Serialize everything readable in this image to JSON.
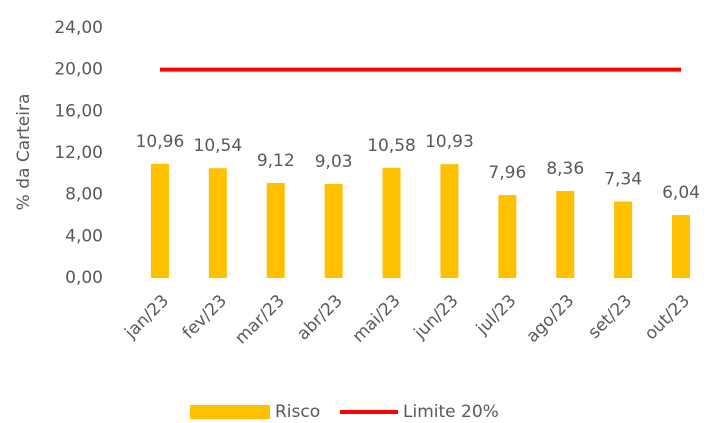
{
  "chart_data": {
    "type": "bar",
    "y_axis_label": "% da Carteira",
    "categories": [
      "jan/23",
      "fev/23",
      "mar/23",
      "abr/23",
      "mai/23",
      "jun/23",
      "jul/23",
      "ago/23",
      "set/23",
      "out/23"
    ],
    "series": [
      {
        "name": "Risco",
        "type": "bar",
        "color": "#ffc000",
        "values": [
          10.96,
          10.54,
          9.12,
          9.03,
          10.58,
          10.93,
          7.96,
          8.36,
          7.34,
          6.04
        ],
        "value_labels": [
          "10,96",
          "10,54",
          "9,12",
          "9,03",
          "10,58",
          "10,93",
          "7,96",
          "8,36",
          "7,34",
          "6,04"
        ]
      },
      {
        "name": "Limite 20%",
        "type": "line",
        "color": "#ff0000",
        "values": [
          20,
          20,
          20,
          20,
          20,
          20,
          20,
          20,
          20,
          20
        ]
      }
    ],
    "ylim": [
      0,
      24
    ],
    "yticks": [
      {
        "value": 0,
        "label": "0,00"
      },
      {
        "value": 4,
        "label": "4,00"
      },
      {
        "value": 8,
        "label": "8,00"
      },
      {
        "value": 12,
        "label": "12,00"
      },
      {
        "value": 16,
        "label": "16,00"
      },
      {
        "value": 20,
        "label": "20,00"
      },
      {
        "value": 24,
        "label": "24,00"
      }
    ],
    "grid": false,
    "legend": "bottom"
  }
}
